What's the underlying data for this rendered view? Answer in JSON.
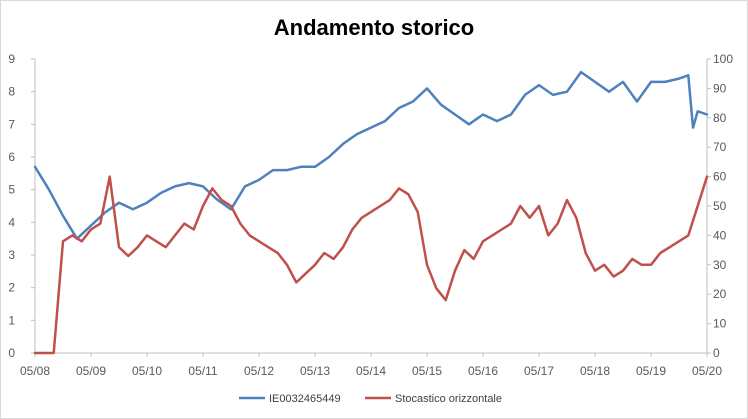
{
  "chart_data": {
    "type": "line",
    "title": "Andamento storico",
    "x_tick_labels": [
      "05/08",
      "05/09",
      "05/10",
      "05/11",
      "05/12",
      "05/13",
      "05/14",
      "05/15",
      "05/16",
      "05/17",
      "05/18",
      "05/19",
      "05/20"
    ],
    "y_left": {
      "ylim": [
        0,
        9
      ],
      "ticks": [
        "0",
        "1",
        "2",
        "3",
        "4",
        "5",
        "6",
        "7",
        "8",
        "9"
      ]
    },
    "y_right": {
      "ylim": [
        0,
        100
      ],
      "ticks": [
        "0",
        "10",
        "20",
        "30",
        "40",
        "50",
        "60",
        "70",
        "80",
        "90",
        "100"
      ]
    },
    "grid": false,
    "legend_position": "bottom",
    "series": [
      {
        "name": "IE0032465449",
        "axis": "left",
        "color": "#4f81bd",
        "x": [
          "05/08",
          "08/08",
          "11/08",
          "02/09",
          "05/09",
          "08/09",
          "11/09",
          "02/10",
          "05/10",
          "08/10",
          "11/10",
          "02/11",
          "05/11",
          "08/11",
          "11/11",
          "02/12",
          "05/12",
          "08/12",
          "11/12",
          "02/13",
          "05/13",
          "08/13",
          "11/13",
          "02/14",
          "05/14",
          "08/14",
          "11/14",
          "02/15",
          "05/15",
          "08/15",
          "11/15",
          "02/16",
          "05/16",
          "08/16",
          "11/16",
          "02/17",
          "05/17",
          "08/17",
          "11/17",
          "02/18",
          "05/18",
          "08/18",
          "11/18",
          "02/19",
          "05/19",
          "08/19",
          "11/19",
          "01/20",
          "02/20",
          "03/20",
          "05/20"
        ],
        "y": [
          5.7,
          5.0,
          4.2,
          3.5,
          3.9,
          4.3,
          4.6,
          4.4,
          4.6,
          4.9,
          5.1,
          5.2,
          5.1,
          4.7,
          4.4,
          5.1,
          5.3,
          5.6,
          5.6,
          5.7,
          5.7,
          6.0,
          6.4,
          6.7,
          6.9,
          7.1,
          7.5,
          7.7,
          8.1,
          7.6,
          7.3,
          7.0,
          7.3,
          7.1,
          7.3,
          7.9,
          8.2,
          7.9,
          8.0,
          8.6,
          8.3,
          8.0,
          8.3,
          7.7,
          8.3,
          8.3,
          8.4,
          8.5,
          6.9,
          7.4,
          7.3
        ]
      },
      {
        "name": "Stocastico orizzontale",
        "axis": "right",
        "color": "#c0504d",
        "x": [
          "05/08",
          "07/08",
          "09/08",
          "11/08",
          "01/09",
          "03/09",
          "05/09",
          "07/09",
          "09/09",
          "11/09",
          "01/10",
          "03/10",
          "05/10",
          "07/10",
          "09/10",
          "11/10",
          "01/11",
          "03/11",
          "05/11",
          "07/11",
          "09/11",
          "11/11",
          "01/12",
          "03/12",
          "05/12",
          "07/12",
          "09/12",
          "11/12",
          "01/13",
          "03/13",
          "05/13",
          "07/13",
          "09/13",
          "11/13",
          "01/14",
          "03/14",
          "05/14",
          "07/14",
          "09/14",
          "11/14",
          "01/15",
          "03/15",
          "05/15",
          "07/15",
          "09/15",
          "11/15",
          "01/16",
          "03/16",
          "05/16",
          "07/16",
          "09/16",
          "11/16",
          "01/17",
          "03/17",
          "05/17",
          "07/17",
          "09/17",
          "11/17",
          "01/18",
          "03/18",
          "05/18",
          "07/18",
          "09/18",
          "11/18",
          "01/19",
          "03/19",
          "05/19",
          "07/19",
          "09/19",
          "11/19",
          "01/20",
          "03/20",
          "05/20"
        ],
        "y": [
          0,
          0,
          0,
          38,
          40,
          38,
          42,
          44,
          60,
          36,
          33,
          36,
          40,
          38,
          36,
          40,
          44,
          42,
          50,
          56,
          52,
          50,
          44,
          40,
          38,
          36,
          34,
          30,
          24,
          27,
          30,
          34,
          32,
          36,
          42,
          46,
          48,
          50,
          52,
          56,
          54,
          48,
          30,
          22,
          18,
          28,
          35,
          32,
          38,
          40,
          42,
          44,
          50,
          46,
          50,
          40,
          44,
          52,
          46,
          34,
          28,
          30,
          26,
          28,
          32,
          30,
          30,
          34,
          36,
          38,
          40,
          50,
          60
        ]
      }
    ]
  }
}
